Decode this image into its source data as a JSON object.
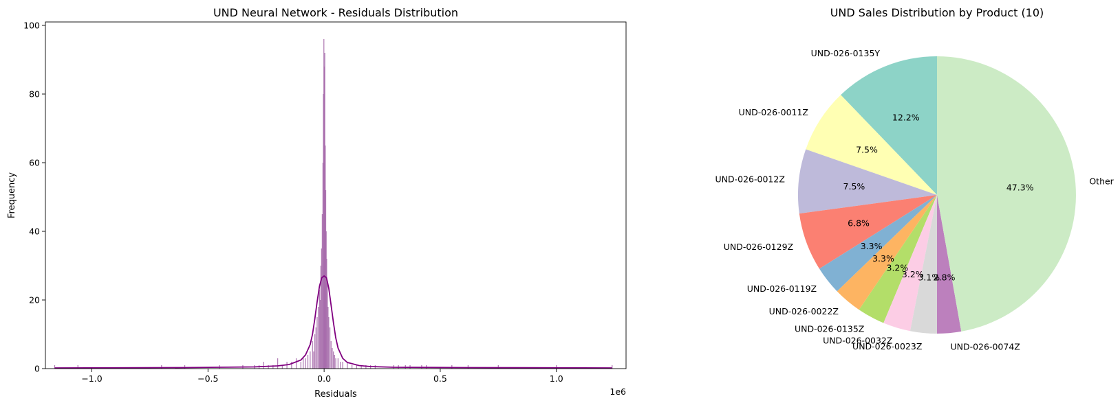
{
  "chart_data": [
    {
      "type": "histogram",
      "title": "UND Neural Network - Residuals Distribution",
      "xlabel": "Residuals",
      "ylabel": "Frequency",
      "x_offset_label": "1e6",
      "xlim": [
        -1.2,
        1.3
      ],
      "ylim": [
        0,
        101
      ],
      "xticks": [
        -1.0,
        -0.5,
        0.0,
        0.5,
        1.0
      ],
      "xtick_labels": [
        "−1.0",
        "−0.5",
        "0.0",
        "0.5",
        "1.0"
      ],
      "yticks": [
        0,
        20,
        40,
        60,
        80,
        100
      ],
      "bar_color": "#a569a9",
      "kde_color": "#800080",
      "bars": [
        {
          "x": -1.16,
          "y": 1
        },
        {
          "x": -1.06,
          "y": 1
        },
        {
          "x": -0.7,
          "y": 1
        },
        {
          "x": -0.6,
          "y": 1
        },
        {
          "x": -0.45,
          "y": 1
        },
        {
          "x": -0.35,
          "y": 1
        },
        {
          "x": -0.3,
          "y": 1
        },
        {
          "x": -0.28,
          "y": 1
        },
        {
          "x": -0.26,
          "y": 2
        },
        {
          "x": -0.24,
          "y": 1
        },
        {
          "x": -0.22,
          "y": 1
        },
        {
          "x": -0.2,
          "y": 3
        },
        {
          "x": -0.18,
          "y": 1
        },
        {
          "x": -0.16,
          "y": 2
        },
        {
          "x": -0.14,
          "y": 2
        },
        {
          "x": -0.12,
          "y": 3
        },
        {
          "x": -0.1,
          "y": 2
        },
        {
          "x": -0.09,
          "y": 3
        },
        {
          "x": -0.08,
          "y": 3
        },
        {
          "x": -0.07,
          "y": 4
        },
        {
          "x": -0.06,
          "y": 5
        },
        {
          "x": -0.05,
          "y": 8
        },
        {
          "x": -0.045,
          "y": 5
        },
        {
          "x": -0.04,
          "y": 10
        },
        {
          "x": -0.035,
          "y": 12
        },
        {
          "x": -0.03,
          "y": 15
        },
        {
          "x": -0.025,
          "y": 18
        },
        {
          "x": -0.02,
          "y": 23
        },
        {
          "x": -0.017,
          "y": 20
        },
        {
          "x": -0.014,
          "y": 30
        },
        {
          "x": -0.011,
          "y": 35
        },
        {
          "x": -0.008,
          "y": 45
        },
        {
          "x": -0.005,
          "y": 60
        },
        {
          "x": -0.003,
          "y": 80
        },
        {
          "x": -0.001,
          "y": 96
        },
        {
          "x": 0.001,
          "y": 88
        },
        {
          "x": 0.003,
          "y": 92
        },
        {
          "x": 0.005,
          "y": 65
        },
        {
          "x": 0.007,
          "y": 52
        },
        {
          "x": 0.009,
          "y": 40
        },
        {
          "x": 0.011,
          "y": 32
        },
        {
          "x": 0.014,
          "y": 25
        },
        {
          "x": 0.017,
          "y": 18
        },
        {
          "x": 0.02,
          "y": 15
        },
        {
          "x": 0.025,
          "y": 12
        },
        {
          "x": 0.03,
          "y": 8
        },
        {
          "x": 0.035,
          "y": 6
        },
        {
          "x": 0.04,
          "y": 5
        },
        {
          "x": 0.045,
          "y": 4
        },
        {
          "x": 0.05,
          "y": 3
        },
        {
          "x": 0.06,
          "y": 3
        },
        {
          "x": 0.07,
          "y": 2
        },
        {
          "x": 0.08,
          "y": 2
        },
        {
          "x": 0.1,
          "y": 2
        },
        {
          "x": 0.12,
          "y": 1
        },
        {
          "x": 0.14,
          "y": 1
        },
        {
          "x": 0.16,
          "y": 1
        },
        {
          "x": 0.18,
          "y": 1
        },
        {
          "x": 0.2,
          "y": 1
        },
        {
          "x": 0.22,
          "y": 1
        },
        {
          "x": 0.3,
          "y": 1
        },
        {
          "x": 0.32,
          "y": 1
        },
        {
          "x": 0.35,
          "y": 1
        },
        {
          "x": 0.37,
          "y": 1
        },
        {
          "x": 0.42,
          "y": 1
        },
        {
          "x": 0.44,
          "y": 1
        },
        {
          "x": 0.55,
          "y": 1
        },
        {
          "x": 0.62,
          "y": 1
        },
        {
          "x": 0.75,
          "y": 1
        },
        {
          "x": 1.0,
          "y": 1
        },
        {
          "x": 1.24,
          "y": 1
        }
      ],
      "kde": {
        "x": [
          -1.16,
          -0.6,
          -0.3,
          -0.2,
          -0.15,
          -0.1,
          -0.08,
          -0.06,
          -0.05,
          -0.04,
          -0.03,
          -0.02,
          -0.01,
          0.0,
          0.01,
          0.02,
          0.03,
          0.04,
          0.05,
          0.06,
          0.08,
          0.1,
          0.15,
          0.2,
          0.3,
          0.6,
          1.24
        ],
        "y": [
          0.2,
          0.3,
          0.5,
          0.8,
          1.2,
          2.5,
          4,
          7,
          10,
          14.5,
          19.5,
          24,
          26.5,
          27,
          26.5,
          23.5,
          18.5,
          13.5,
          9,
          6,
          3,
          1.8,
          0.9,
          0.6,
          0.4,
          0.3,
          0.2
        ]
      }
    },
    {
      "type": "pie",
      "title": "UND Sales Distribution by Product (10)",
      "start_angle_deg": 90,
      "direction": "counterclockwise",
      "slices": [
        {
          "label": "UND-026-0135Y",
          "pct_label": "12.2%",
          "value": 12.2,
          "color": "#8dd3c7"
        },
        {
          "label": "UND-026-0011Z",
          "pct_label": "7.5%",
          "value": 7.5,
          "color": "#ffffb3"
        },
        {
          "label": "UND-026-0012Z",
          "pct_label": "7.5%",
          "value": 7.5,
          "color": "#bebada"
        },
        {
          "label": "UND-026-0129Z",
          "pct_label": "6.8%",
          "value": 6.8,
          "color": "#fb8072"
        },
        {
          "label": "UND-026-0119Z",
          "pct_label": "3.3%",
          "value": 3.3,
          "color": "#80b1d3"
        },
        {
          "label": "UND-026-0022Z",
          "pct_label": "3.3%",
          "value": 3.3,
          "color": "#fdb462"
        },
        {
          "label": "UND-026-0135Z",
          "pct_label": "3.2%",
          "value": 3.2,
          "color": "#b3de69"
        },
        {
          "label": "UND-026-0032Z",
          "pct_label": "3.2%",
          "value": 3.2,
          "color": "#fccde5"
        },
        {
          "label": "UND-026-0023Z",
          "pct_label": "3.1%",
          "value": 3.1,
          "color": "#d9d9d9"
        },
        {
          "label": "UND-026-0074Z",
          "pct_label": "2.8%",
          "value": 2.8,
          "color": "#bc80bd"
        },
        {
          "label": "Other",
          "pct_label": "47.3%",
          "value": 47.3,
          "color": "#ccebc5"
        }
      ]
    }
  ]
}
